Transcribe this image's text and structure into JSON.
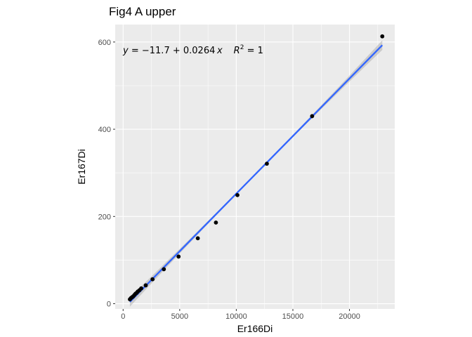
{
  "chart_data": {
    "type": "scatter",
    "title": "Fig4 A upper",
    "xlabel": "Er166Di",
    "ylabel": "Er167Di",
    "xlim": [
      -700,
      24000
    ],
    "ylim": [
      -12,
      640
    ],
    "xticks": [
      0,
      5000,
      10000,
      15000,
      20000
    ],
    "yticks": [
      0,
      200,
      400,
      600
    ],
    "grid": true,
    "points": [
      {
        "x": 600,
        "y": 10
      },
      {
        "x": 700,
        "y": 13
      },
      {
        "x": 800,
        "y": 15
      },
      {
        "x": 900,
        "y": 17
      },
      {
        "x": 1000,
        "y": 20
      },
      {
        "x": 1100,
        "y": 23
      },
      {
        "x": 1200,
        "y": 25
      },
      {
        "x": 1300,
        "y": 28
      },
      {
        "x": 1450,
        "y": 31
      },
      {
        "x": 1600,
        "y": 35
      },
      {
        "x": 2000,
        "y": 42
      },
      {
        "x": 2600,
        "y": 56
      },
      {
        "x": 3600,
        "y": 79
      },
      {
        "x": 4900,
        "y": 108
      },
      {
        "x": 6600,
        "y": 150
      },
      {
        "x": 8200,
        "y": 186
      },
      {
        "x": 10100,
        "y": 249
      },
      {
        "x": 12700,
        "y": 321
      },
      {
        "x": 16700,
        "y": 430
      },
      {
        "x": 22900,
        "y": 613
      }
    ],
    "fit": {
      "method": "linear",
      "intercept": -11.7,
      "slope": 0.0264,
      "r_squared": 1,
      "x_range": [
        600,
        22900
      ],
      "line_color": "#3366ff",
      "band_color": "#999999"
    },
    "annotation": {
      "y_var": "y",
      "equals": " = ",
      "rhs": "−11.7 + 0.0264 ",
      "x_var": "x",
      "r2_symbol": "R",
      "r2_exponent": "2",
      "r2_rest": " = 1"
    },
    "colors": {
      "panel": "#ebebeb",
      "grid_major": "#ffffff",
      "point": "#000000"
    }
  }
}
